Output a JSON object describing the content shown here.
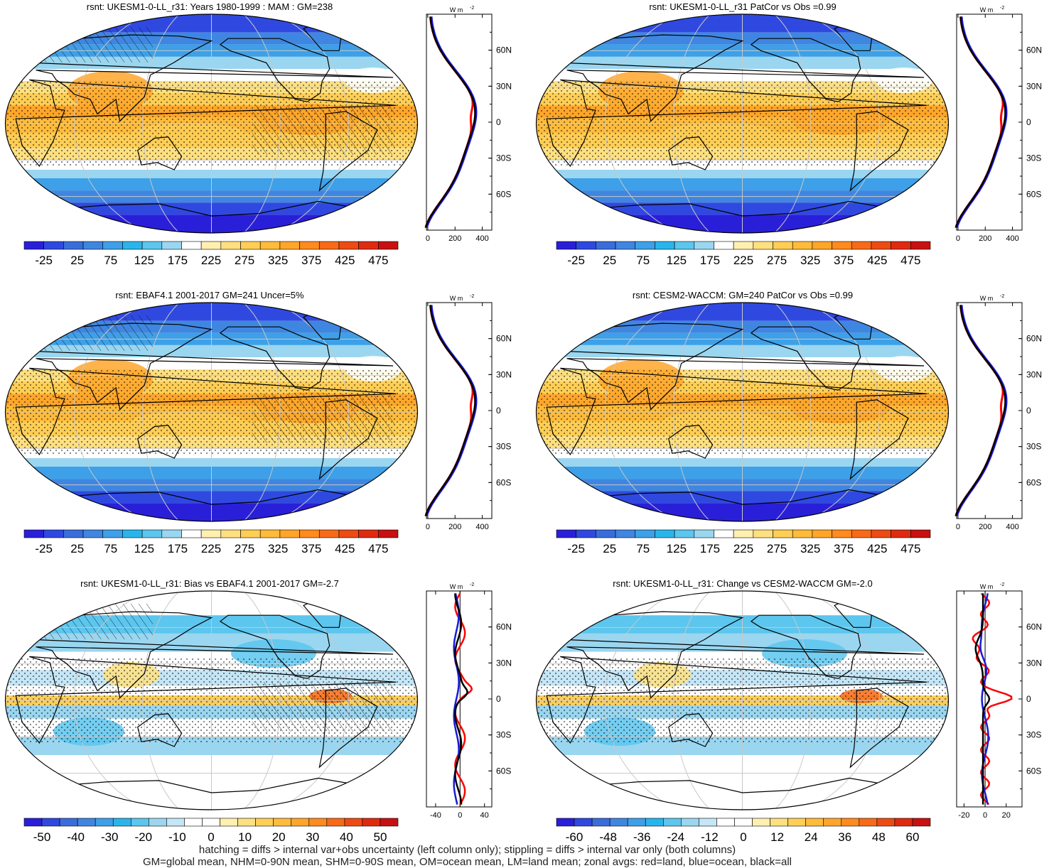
{
  "panels": [
    {
      "title": "rsnt: UKESM1-0-LL_r31: Years 1980-1999 : MAM : GM=238",
      "kind": "abs",
      "hatch": true
    },
    {
      "title": "rsnt: UKESM1-0-LL_r31 PatCor vs Obs =0.99",
      "kind": "abs",
      "hatch": false
    },
    {
      "title": "rsnt: EBAF4.1 2001-2017 GM=241 Uncer=5%",
      "kind": "abs",
      "hatch": true
    },
    {
      "title": "rsnt: CESM2-WACCM: GM=240 PatCor vs Obs =0.99",
      "kind": "abs",
      "hatch": false
    },
    {
      "title": "rsnt: UKESM1-0-LL_r31: Bias vs EBAF4.1 2001-2017 GM=-2.7",
      "kind": "diff",
      "hatch": true
    },
    {
      "title": "rsnt: UKESM1-0-LL_r31: Change vs CESM2-WACCM GM=-2.0",
      "kind": "diff",
      "hatch": false
    }
  ],
  "colorbars": [
    {
      "labels": [
        "-25",
        "25",
        "75",
        "125",
        "175",
        "225",
        "275",
        "325",
        "375",
        "425",
        "475"
      ]
    },
    {
      "labels": [
        "-25",
        "25",
        "75",
        "125",
        "175",
        "225",
        "275",
        "325",
        "375",
        "425",
        "475"
      ]
    },
    {
      "labels": [
        "-25",
        "25",
        "75",
        "125",
        "175",
        "225",
        "275",
        "325",
        "375",
        "425",
        "475"
      ]
    },
    {
      "labels": [
        "-25",
        "25",
        "75",
        "125",
        "175",
        "225",
        "275",
        "325",
        "375",
        "425",
        "475"
      ]
    },
    {
      "labels": [
        "-50",
        "-40",
        "-30",
        "-20",
        "-10",
        "0",
        "10",
        "20",
        "30",
        "40",
        "50"
      ]
    },
    {
      "labels": [
        "-60",
        "-48",
        "-36",
        "-24",
        "-12",
        "0",
        "12",
        "24",
        "36",
        "48",
        "60"
      ]
    }
  ],
  "colors": {
    "abs_scale": [
      "#2a1fd8",
      "#2f49e0",
      "#3a6ddc",
      "#3f86e0",
      "#3da0e8",
      "#29b5ec",
      "#5cc6ee",
      "#9ad6f0",
      "#ffffff",
      "#fff0b0",
      "#ffe080",
      "#ffce55",
      "#ffbb3a",
      "#ffa62a",
      "#ff8a1e",
      "#f86a18",
      "#ee4a14",
      "#df2a10",
      "#c81010"
    ],
    "diff_scale": [
      "#2a1fd8",
      "#2f49e0",
      "#3a6ddc",
      "#3f86e0",
      "#3da0e8",
      "#29b5ec",
      "#5cc6ee",
      "#9ad6f0",
      "#c4e6f6",
      "#ffffff",
      "#ffffff",
      "#fff0b0",
      "#ffe080",
      "#ffce55",
      "#ffbb3a",
      "#ffa62a",
      "#ff8a1e",
      "#f86a18",
      "#ee4a14",
      "#df2a10",
      "#c81010"
    ],
    "land_line": "#ff0000",
    "ocean_line": "#1a1ad6",
    "all_line": "#000000"
  },
  "zonal": {
    "unit": "W m",
    "unit_exp": "-2",
    "lat_labels": [
      "60N",
      "30N",
      "0",
      "30S",
      "60S"
    ],
    "abs_ticks": [
      "0",
      "200",
      "400"
    ],
    "bias_ticks": [
      "-40",
      "0",
      "40"
    ],
    "change_ticks": [
      "-20",
      "0",
      "20"
    ]
  },
  "footer": [
    "hatching = diffs > internal var+obs uncertainty (left column only); stippling = diffs > internal var only (both columns)",
    "GM=global mean, NHM=0-90N mean, SHM=0-90S mean, OM=ocean mean, LM=land mean; zonal avgs: red=land, blue=ocean, black=all"
  ]
}
